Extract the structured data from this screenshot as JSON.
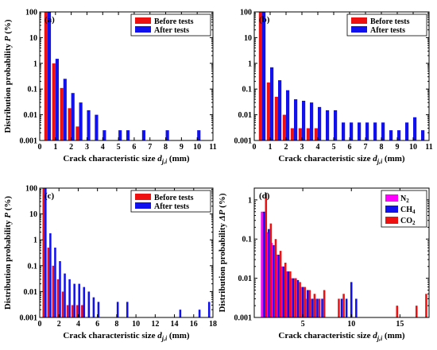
{
  "chart_data": [
    {
      "panel_label": "(a)",
      "type": "bar",
      "y_scale": "log",
      "xlim": [
        0,
        11
      ],
      "ylim": [
        0.001,
        100
      ],
      "xticks": [
        "0",
        "1",
        "2",
        "3",
        "4",
        "5",
        "6",
        "7",
        "8",
        "9",
        "10",
        "11"
      ],
      "yticks": [
        "0.001",
        "0.01",
        "0.1",
        "1",
        "10",
        "100"
      ],
      "xlabel": {
        "main": "Crack characteristic size ",
        "var": "d",
        "sub": "j,i",
        "unit": " (mm)"
      },
      "ylabel": {
        "main": "Distribution probability  ",
        "var": "P",
        "unit": " (%)"
      },
      "legend_position": "top-right",
      "series": [
        {
          "name": "Before tests",
          "color": "#ee1111",
          "x": [
            0.5,
            1.0,
            1.5,
            2.0,
            2.5
          ],
          "values": [
            100,
            1.0,
            0.11,
            0.018,
            0.0035
          ]
        },
        {
          "name": "After tests",
          "color": "#1111ee",
          "x": [
            0.5,
            1.0,
            1.5,
            2.0,
            2.5,
            3.0,
            3.5,
            4.0,
            5.0,
            5.5,
            6.5,
            8.0,
            10.0
          ],
          "values": [
            100,
            1.5,
            0.25,
            0.07,
            0.03,
            0.015,
            0.01,
            0.0025,
            0.0025,
            0.0025,
            0.0025,
            0.0025,
            0.0025
          ]
        }
      ]
    },
    {
      "panel_label": "(b)",
      "type": "bar",
      "y_scale": "log",
      "xlim": [
        0,
        11
      ],
      "ylim": [
        0.001,
        100
      ],
      "xticks": [
        "0",
        "1",
        "2",
        "3",
        "4",
        "5",
        "6",
        "7",
        "8",
        "9",
        "10",
        "11"
      ],
      "yticks": [
        "0.001",
        "0.01",
        "0.1",
        "1",
        "10",
        "100"
      ],
      "xlabel": {
        "main": "Crack characteristic size ",
        "var": "d",
        "sub": "j,i",
        "unit": " (mm)"
      },
      "ylabel": {
        "main": "",
        "var": "",
        "unit": ""
      },
      "legend_position": "top-right",
      "series": [
        {
          "name": "Before tests",
          "color": "#ee1111",
          "x": [
            0.5,
            1.0,
            1.5,
            2.0,
            2.5,
            3.0,
            3.5,
            4.0
          ],
          "values": [
            100,
            0.18,
            0.05,
            0.01,
            0.003,
            0.003,
            0.003,
            0.003
          ]
        },
        {
          "name": "After tests",
          "color": "#1111ee",
          "x": [
            0.5,
            1.0,
            1.5,
            2.0,
            2.5,
            3.0,
            3.5,
            4.0,
            4.5,
            5.0,
            5.5,
            6.0,
            6.5,
            7.0,
            7.5,
            8.0,
            8.5,
            9.0,
            9.5,
            10.0,
            10.5
          ],
          "values": [
            100,
            0.7,
            0.22,
            0.09,
            0.04,
            0.035,
            0.03,
            0.02,
            0.015,
            0.015,
            0.005,
            0.005,
            0.005,
            0.005,
            0.005,
            0.005,
            0.0025,
            0.0025,
            0.005,
            0.008,
            0.0025
          ]
        }
      ]
    },
    {
      "panel_label": "(c)",
      "type": "bar",
      "y_scale": "log",
      "xlim": [
        0,
        18
      ],
      "ylim": [
        0.001,
        100
      ],
      "xticks": [
        "0",
        "2",
        "4",
        "6",
        "8",
        "10",
        "12",
        "14",
        "16",
        "18"
      ],
      "xtick_step": 2,
      "yticks": [
        "0.001",
        "0.01",
        "0.1",
        "1",
        "10",
        "100"
      ],
      "xlabel": {
        "main": "Crack characteristic size ",
        "var": "d",
        "sub": "j,i",
        "unit": " (mm)"
      },
      "ylabel": {
        "main": "Distribution probability  ",
        "var": "P",
        "unit": " (%)"
      },
      "legend_position": "top-right",
      "series": [
        {
          "name": "Before tests",
          "color": "#ee1111",
          "x": [
            0.5,
            1.0,
            1.5,
            2.0,
            2.5,
            3.0,
            3.5,
            4.0,
            4.5
          ],
          "values": [
            100,
            0.5,
            0.1,
            0.03,
            0.01,
            0.003,
            0.003,
            0.003,
            0.003
          ]
        },
        {
          "name": "After tests",
          "color": "#1111ee",
          "x": [
            0.5,
            1.0,
            1.5,
            2.0,
            2.5,
            3.0,
            3.5,
            4.0,
            4.5,
            5.0,
            5.5,
            6.0,
            8.0,
            9.0,
            14.5,
            16.5,
            17.5
          ],
          "values": [
            100,
            1.8,
            0.5,
            0.15,
            0.05,
            0.03,
            0.02,
            0.02,
            0.015,
            0.01,
            0.006,
            0.004,
            0.004,
            0.004,
            0.002,
            0.002,
            0.004
          ]
        }
      ]
    },
    {
      "panel_label": "(d)",
      "type": "bar",
      "y_scale": "log",
      "xlim": [
        0,
        18
      ],
      "ylim": [
        0.001,
        2
      ],
      "xticks": [
        "5",
        "10",
        "15"
      ],
      "xtick_values": [
        5,
        10,
        15
      ],
      "yticks": [
        "0.001",
        "0.01",
        "0.1",
        "1"
      ],
      "xlabel": {
        "main": "Crack characteristic size ",
        "var": "d",
        "sub": "j,i",
        "unit": " (mm)"
      },
      "ylabel": {
        "main": "Distribution probability  ",
        "var": "ΔP",
        "unit": " (%)"
      },
      "legend_position": "top-right",
      "series": [
        {
          "name": "N2",
          "label_main": "N",
          "label_sub": "2",
          "color": "#ff00ff",
          "x": [
            1.0,
            1.5,
            2.0,
            2.5,
            3.0,
            3.5,
            4.0,
            4.5,
            5.0,
            5.5,
            6.0,
            6.5
          ],
          "values": [
            0.5,
            0.15,
            0.08,
            0.04,
            0.02,
            0.015,
            0.01,
            0.01,
            0.006,
            0.003,
            0.003,
            0.003
          ]
        },
        {
          "name": "CH4",
          "label_main": "CH",
          "label_sub": "4",
          "color": "#1111ee",
          "x": [
            1.0,
            1.5,
            2.0,
            2.5,
            3.0,
            3.5,
            4.0,
            4.5,
            5.0,
            5.5,
            6.0,
            6.5,
            7.0,
            9.0,
            9.5,
            10.0,
            10.5
          ],
          "values": [
            0.5,
            0.18,
            0.07,
            0.04,
            0.02,
            0.015,
            0.01,
            0.009,
            0.006,
            0.005,
            0.003,
            0.003,
            0.003,
            0.003,
            0.003,
            0.008,
            0.003
          ]
        },
        {
          "name": "CO2",
          "label_main": "CO",
          "label_sub": "2",
          "color": "#ee1111",
          "x": [
            1.0,
            1.5,
            2.0,
            2.5,
            3.0,
            3.5,
            4.0,
            4.5,
            5.0,
            5.5,
            6.0,
            6.5,
            7.0,
            8.5,
            9.0,
            14.5,
            16.5,
            17.5
          ],
          "values": [
            1.5,
            0.25,
            0.1,
            0.05,
            0.025,
            0.015,
            0.01,
            0.008,
            0.006,
            0.005,
            0.004,
            0.003,
            0.005,
            0.003,
            0.004,
            0.002,
            0.002,
            0.004
          ]
        }
      ]
    }
  ]
}
